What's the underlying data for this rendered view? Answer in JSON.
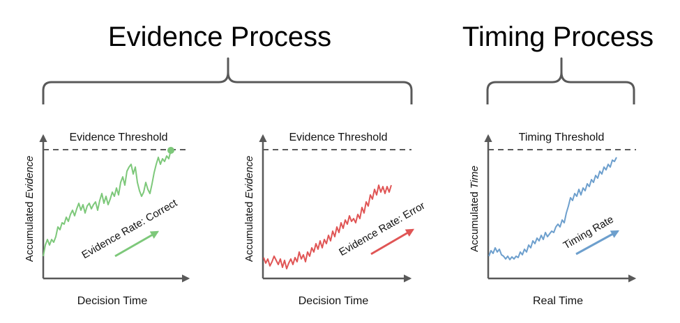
{
  "titles": {
    "evidence_process": "Evidence Process",
    "timing_process": "Timing Process"
  },
  "panels": [
    {
      "threshold_label": "Evidence Threshold",
      "y_label_prefix": "Accumulated ",
      "y_label_emph": "Evidence",
      "x_label": "Decision Time",
      "rate_label": "Evidence Rate: Correct",
      "color": "#7dc87a",
      "reaches_threshold": true
    },
    {
      "threshold_label": "Evidence Threshold",
      "y_label_prefix": "Accumulated ",
      "y_label_emph": "Evidence",
      "x_label": "Decision Time",
      "rate_label": "Evidence Rate: Error",
      "color": "#e05555",
      "reaches_threshold": false
    },
    {
      "threshold_label": "Timing Threshold",
      "y_label_prefix": "Accumulated ",
      "y_label_emph": "Time",
      "x_label": "Real Time",
      "rate_label": "Timing Rate",
      "color": "#6d9fcd",
      "reaches_threshold": false
    }
  ],
  "colors": {
    "axis": "#595959",
    "threshold": "#595959",
    "bracket": "#595959"
  }
}
